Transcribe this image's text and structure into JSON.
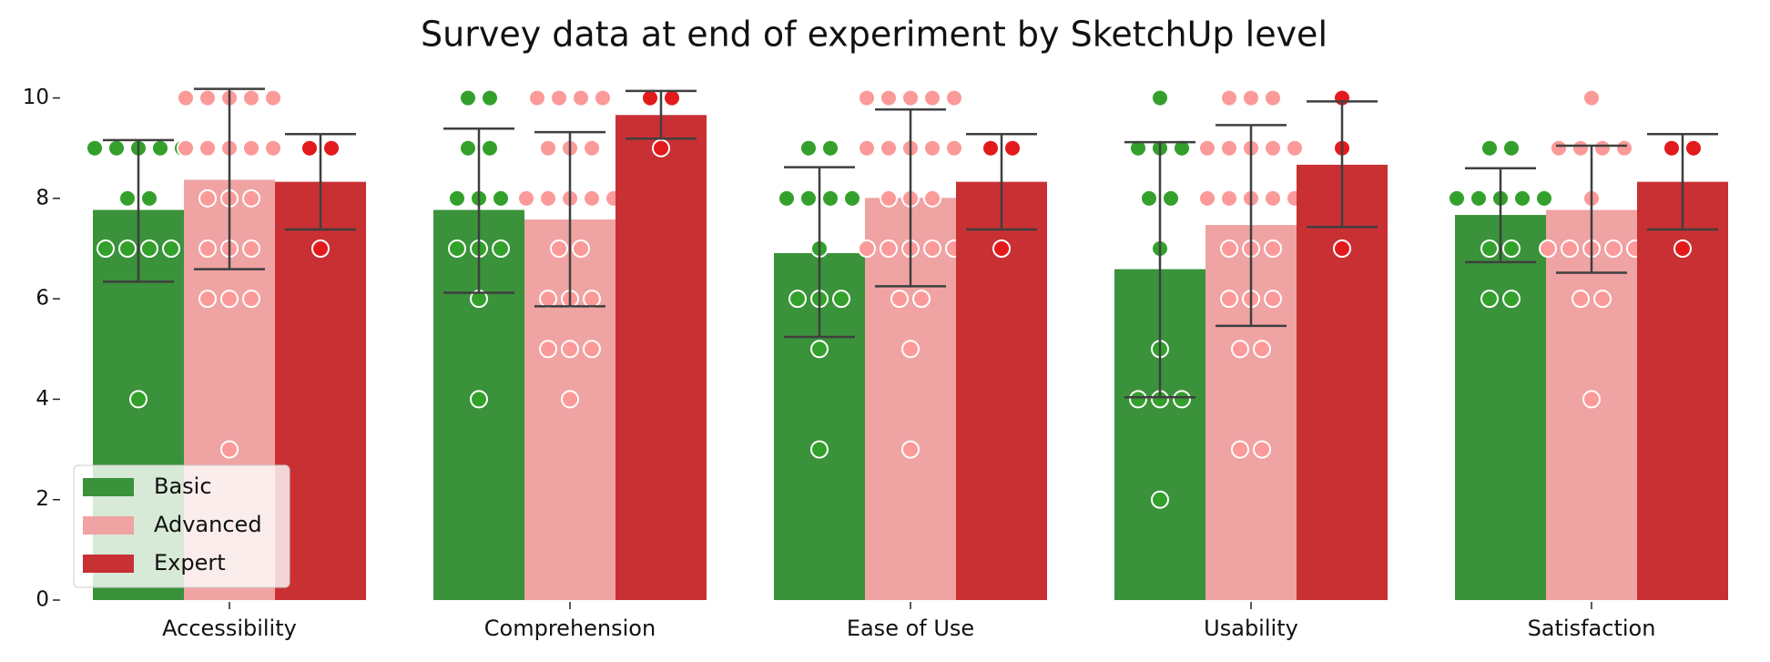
{
  "chart_data": {
    "type": "bar",
    "title": "Survey data at end of experiment by SketchUp level",
    "categories": [
      "Accessibility",
      "Comprehension",
      "Ease of Use",
      "Usability",
      "Satisfaction"
    ],
    "ylim": [
      0,
      10.5
    ],
    "yticks": [
      0,
      2,
      4,
      6,
      8,
      10
    ],
    "grid": false,
    "legend": "lower left",
    "series": [
      {
        "name": "Basic",
        "color": "#3a923a",
        "point_color": "#33a02c",
        "values": [
          7.77,
          7.77,
          6.91,
          6.59,
          7.67
        ],
        "ci_low": [
          6.34,
          6.12,
          5.24,
          4.04,
          6.73
        ],
        "ci_high": [
          9.16,
          9.39,
          8.62,
          9.12,
          8.6
        ],
        "points": [
          [
            9,
            9,
            9,
            9,
            9,
            8,
            8,
            7,
            7,
            7,
            7,
            4
          ],
          [
            10,
            10,
            9,
            9,
            8,
            8,
            8,
            7,
            7,
            7,
            6,
            4
          ],
          [
            9,
            9,
            8,
            8,
            8,
            8,
            7,
            6,
            6,
            6,
            5,
            3
          ],
          [
            10,
            9,
            9,
            9,
            8,
            8,
            7,
            5,
            4,
            4,
            4,
            2
          ],
          [
            9,
            9,
            8,
            8,
            8,
            8,
            8,
            7,
            7,
            6,
            6
          ]
        ]
      },
      {
        "name": "Advanced",
        "color": "#f0a3a3",
        "point_color": "#fb9a99",
        "values": [
          8.37,
          7.58,
          8.01,
          7.47,
          7.77
        ],
        "ci_low": [
          6.59,
          5.85,
          6.25,
          5.46,
          6.52
        ],
        "ci_high": [
          10.18,
          9.32,
          9.77,
          9.46,
          9.05
        ],
        "points": [
          [
            10,
            10,
            10,
            10,
            10,
            9,
            9,
            9,
            9,
            9,
            8,
            8,
            8,
            7,
            7,
            7,
            6,
            6,
            6,
            3
          ],
          [
            10,
            10,
            10,
            10,
            9,
            9,
            9,
            8,
            8,
            8,
            8,
            8,
            7,
            7,
            6,
            6,
            6,
            5,
            5,
            5,
            4
          ],
          [
            10,
            10,
            10,
            10,
            10,
            9,
            9,
            9,
            9,
            9,
            8,
            8,
            8,
            7,
            7,
            7,
            7,
            7,
            6,
            6,
            5,
            3
          ],
          [
            10,
            10,
            10,
            9,
            9,
            9,
            9,
            9,
            8,
            8,
            8,
            8,
            8,
            7,
            7,
            7,
            6,
            6,
            6,
            5,
            5,
            3,
            3
          ],
          [
            10,
            9,
            9,
            9,
            9,
            8,
            7,
            7,
            7,
            7,
            7,
            6,
            6,
            4
          ]
        ]
      },
      {
        "name": "Expert",
        "color": "#c83034",
        "point_color": "#e31a1c",
        "values": [
          8.33,
          9.66,
          8.33,
          8.67,
          8.33
        ],
        "ci_low": [
          7.38,
          9.19,
          7.38,
          7.43,
          7.38
        ],
        "ci_high": [
          9.28,
          10.14,
          9.28,
          9.93,
          9.28
        ],
        "points": [
          [
            9,
            9,
            7
          ],
          [
            10,
            10,
            9
          ],
          [
            9,
            9,
            7
          ],
          [
            10,
            9,
            7
          ],
          [
            9,
            9,
            7
          ]
        ]
      }
    ]
  }
}
